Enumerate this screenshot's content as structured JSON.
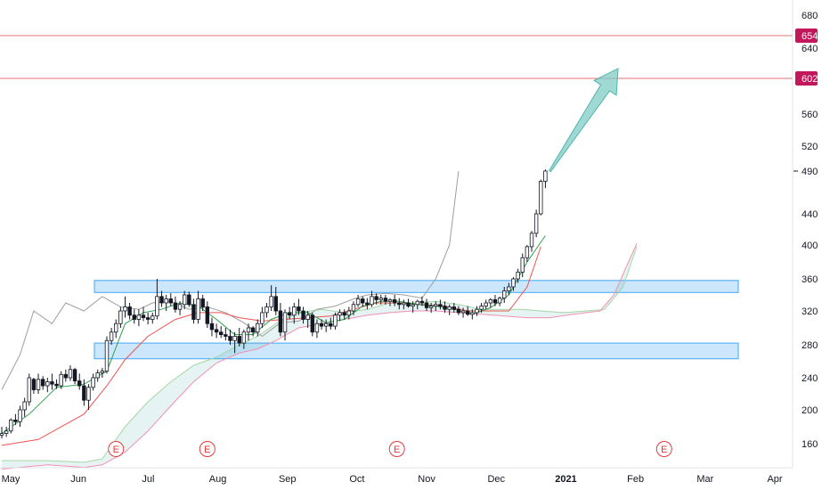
{
  "chart_data": {
    "type": "candlestick",
    "y_axis": {
      "ticks": [
        "680",
        "640",
        "560",
        "520",
        "440",
        "400",
        "360",
        "320",
        "280",
        "240",
        "200",
        "160"
      ],
      "tick_values": [
        680,
        640,
        560,
        520,
        440,
        400,
        360,
        320,
        280,
        240,
        200,
        160
      ],
      "ylim": [
        130,
        700
      ]
    },
    "x_axis": {
      "labels": [
        "May",
        "Jun",
        "Jul",
        "Aug",
        "Sep",
        "Oct",
        "Nov",
        "Dec",
        "2021",
        "Feb",
        "Mar",
        "Apr"
      ],
      "bold": [
        "2021"
      ],
      "x_range": [
        0,
        340
      ]
    },
    "price_tags": [
      {
        "label": "654",
        "value": 654,
        "color": "#c2185b"
      },
      {
        "label": "602",
        "value": 602,
        "color": "#c2185b"
      },
      {
        "label": "490",
        "value": 490,
        "color": "#131722"
      }
    ],
    "horizontal_lines": [
      654,
      602
    ],
    "zones": [
      {
        "from": 343,
        "to": 358
      },
      {
        "from": 263,
        "to": 282
      }
    ],
    "earnings_label": "E",
    "earnings_markers": [
      50,
      90,
      173,
      290
    ],
    "candles": [
      [
        0,
        170,
        180,
        166,
        172
      ],
      [
        2,
        172,
        180,
        168,
        175
      ],
      [
        4,
        175,
        190,
        172,
        188
      ],
      [
        6,
        188,
        195,
        182,
        186
      ],
      [
        8,
        186,
        205,
        180,
        200
      ],
      [
        10,
        200,
        215,
        192,
        210
      ],
      [
        12,
        210,
        245,
        205,
        240
      ],
      [
        14,
        238,
        240,
        220,
        225
      ],
      [
        16,
        225,
        245,
        220,
        238
      ],
      [
        18,
        238,
        242,
        225,
        230
      ],
      [
        20,
        230,
        240,
        222,
        235
      ],
      [
        22,
        235,
        245,
        225,
        232
      ],
      [
        24,
        232,
        238,
        226,
        230
      ],
      [
        26,
        230,
        248,
        226,
        244
      ],
      [
        28,
        244,
        250,
        235,
        240
      ],
      [
        30,
        240,
        255,
        236,
        250
      ],
      [
        32,
        250,
        252,
        232,
        236
      ],
      [
        34,
        236,
        245,
        225,
        230
      ],
      [
        36,
        230,
        238,
        205,
        212
      ],
      [
        38,
        212,
        232,
        200,
        228
      ],
      [
        40,
        228,
        245,
        224,
        240
      ],
      [
        42,
        240,
        250,
        235,
        246
      ],
      [
        44,
        246,
        252,
        240,
        248
      ],
      [
        46,
        248,
        290,
        245,
        285
      ],
      [
        48,
        285,
        300,
        280,
        295
      ],
      [
        50,
        295,
        310,
        288,
        305
      ],
      [
        52,
        305,
        325,
        300,
        320
      ],
      [
        54,
        320,
        338,
        312,
        325
      ],
      [
        56,
        325,
        330,
        310,
        315
      ],
      [
        58,
        315,
        322,
        305,
        310
      ],
      [
        60,
        310,
        322,
        302,
        315
      ],
      [
        62,
        315,
        325,
        308,
        312
      ],
      [
        64,
        312,
        318,
        304,
        310
      ],
      [
        66,
        310,
        318,
        305,
        314
      ],
      [
        68,
        314,
        360,
        310,
        338
      ],
      [
        70,
        338,
        345,
        325,
        330
      ],
      [
        72,
        330,
        340,
        320,
        335
      ],
      [
        74,
        335,
        342,
        326,
        330
      ],
      [
        76,
        330,
        338,
        318,
        322
      ],
      [
        78,
        322,
        332,
        315,
        328
      ],
      [
        80,
        328,
        345,
        322,
        340
      ],
      [
        82,
        340,
        344,
        325,
        328
      ],
      [
        84,
        328,
        335,
        305,
        310
      ],
      [
        86,
        310,
        345,
        305,
        335
      ],
      [
        88,
        335,
        340,
        320,
        325
      ],
      [
        90,
        325,
        332,
        300,
        305
      ],
      [
        92,
        305,
        312,
        290,
        298
      ],
      [
        94,
        298,
        305,
        288,
        295
      ],
      [
        96,
        295,
        302,
        288,
        292
      ],
      [
        98,
        292,
        300,
        285,
        290
      ],
      [
        100,
        290,
        298,
        280,
        285
      ],
      [
        102,
        285,
        295,
        270,
        290
      ],
      [
        104,
        290,
        300,
        278,
        282
      ],
      [
        106,
        282,
        298,
        275,
        295
      ],
      [
        108,
        295,
        305,
        285,
        300
      ],
      [
        110,
        300,
        302,
        290,
        295
      ],
      [
        112,
        295,
        310,
        290,
        305
      ],
      [
        114,
        305,
        325,
        300,
        318
      ],
      [
        116,
        318,
        330,
        312,
        325
      ],
      [
        118,
        325,
        352,
        320,
        338
      ],
      [
        120,
        338,
        350,
        315,
        320
      ],
      [
        122,
        320,
        330,
        290,
        295
      ],
      [
        124,
        295,
        322,
        285,
        318
      ],
      [
        126,
        318,
        325,
        310,
        315
      ],
      [
        128,
        315,
        330,
        305,
        325
      ],
      [
        130,
        325,
        335,
        315,
        320
      ],
      [
        132,
        320,
        325,
        305,
        310
      ],
      [
        134,
        310,
        320,
        300,
        315
      ],
      [
        136,
        315,
        318,
        290,
        295
      ],
      [
        138,
        295,
        310,
        288,
        305
      ],
      [
        140,
        305,
        310,
        298,
        302
      ],
      [
        142,
        302,
        310,
        295,
        305
      ],
      [
        144,
        305,
        312,
        298,
        302
      ],
      [
        146,
        302,
        318,
        298,
        315
      ],
      [
        148,
        315,
        322,
        308,
        318
      ],
      [
        150,
        318,
        322,
        310,
        315
      ],
      [
        152,
        315,
        325,
        310,
        320
      ],
      [
        154,
        320,
        332,
        315,
        328
      ],
      [
        156,
        328,
        340,
        325,
        335
      ],
      [
        158,
        335,
        338,
        325,
        330
      ],
      [
        160,
        330,
        336,
        322,
        328
      ],
      [
        162,
        328,
        345,
        325,
        338
      ],
      [
        164,
        338,
        342,
        328,
        334
      ],
      [
        166,
        334,
        340,
        328,
        336
      ],
      [
        168,
        336,
        340,
        328,
        332
      ],
      [
        170,
        332,
        336,
        326,
        334
      ],
      [
        172,
        334,
        340,
        326,
        330
      ],
      [
        174,
        330,
        336,
        322,
        328
      ],
      [
        176,
        328,
        334,
        322,
        330
      ],
      [
        178,
        330,
        335,
        324,
        326
      ],
      [
        180,
        326,
        332,
        318,
        328
      ],
      [
        182,
        328,
        334,
        322,
        332
      ],
      [
        184,
        332,
        338,
        326,
        330
      ],
      [
        186,
        330,
        335,
        320,
        324
      ],
      [
        188,
        324,
        330,
        318,
        326
      ],
      [
        190,
        326,
        332,
        320,
        328
      ],
      [
        192,
        328,
        334,
        322,
        326
      ],
      [
        194,
        326,
        332,
        318,
        322
      ],
      [
        196,
        322,
        328,
        315,
        325
      ],
      [
        198,
        325,
        330,
        318,
        322
      ],
      [
        200,
        322,
        326,
        315,
        318
      ],
      [
        202,
        318,
        324,
        312,
        320
      ],
      [
        204,
        320,
        326,
        314,
        316
      ],
      [
        206,
        316,
        322,
        310,
        318
      ],
      [
        208,
        318,
        326,
        314,
        322
      ],
      [
        210,
        322,
        330,
        318,
        326
      ],
      [
        212,
        326,
        334,
        322,
        330
      ],
      [
        214,
        330,
        336,
        324,
        334
      ],
      [
        216,
        334,
        340,
        326,
        330
      ],
      [
        218,
        330,
        338,
        326,
        336
      ],
      [
        220,
        336,
        350,
        330,
        345
      ],
      [
        222,
        345,
        355,
        340,
        350
      ],
      [
        224,
        350,
        362,
        345,
        360
      ],
      [
        226,
        360,
        372,
        355,
        368
      ],
      [
        228,
        368,
        390,
        362,
        385
      ],
      [
        230,
        385,
        400,
        380,
        398
      ],
      [
        232,
        398,
        418,
        392,
        415
      ],
      [
        234,
        415,
        445,
        410,
        440
      ],
      [
        236,
        440,
        480,
        438,
        478
      ],
      [
        238,
        478,
        492,
        470,
        490
      ]
    ],
    "tenkan": [
      [
        0,
        172
      ],
      [
        12,
        195
      ],
      [
        24,
        228
      ],
      [
        36,
        232
      ],
      [
        46,
        248
      ],
      [
        54,
        305
      ],
      [
        62,
        318
      ],
      [
        70,
        322
      ],
      [
        78,
        330
      ],
      [
        86,
        326
      ],
      [
        94,
        310
      ],
      [
        102,
        292
      ],
      [
        110,
        292
      ],
      [
        118,
        310
      ],
      [
        126,
        318
      ],
      [
        134,
        318
      ],
      [
        142,
        306
      ],
      [
        150,
        310
      ],
      [
        158,
        326
      ],
      [
        166,
        332
      ],
      [
        174,
        332
      ],
      [
        182,
        328
      ],
      [
        190,
        326
      ],
      [
        198,
        322
      ],
      [
        206,
        316
      ],
      [
        214,
        324
      ],
      [
        222,
        340
      ],
      [
        230,
        380
      ],
      [
        238,
        412
      ]
    ],
    "kijun": [
      [
        0,
        158
      ],
      [
        16,
        165
      ],
      [
        36,
        195
      ],
      [
        46,
        230
      ],
      [
        54,
        262
      ],
      [
        64,
        290
      ],
      [
        76,
        310
      ],
      [
        86,
        318
      ],
      [
        96,
        318
      ],
      [
        104,
        312
      ],
      [
        114,
        308
      ],
      [
        124,
        310
      ],
      [
        134,
        312
      ],
      [
        144,
        314
      ],
      [
        154,
        322
      ],
      [
        164,
        330
      ],
      [
        174,
        330
      ],
      [
        184,
        328
      ],
      [
        194,
        326
      ],
      [
        204,
        320
      ],
      [
        214,
        320
      ],
      [
        222,
        320
      ],
      [
        230,
        350
      ],
      [
        236,
        398
      ]
    ],
    "chikou": [
      [
        0,
        225
      ],
      [
        8,
        268
      ],
      [
        14,
        320
      ],
      [
        22,
        305
      ],
      [
        28,
        330
      ],
      [
        36,
        320
      ],
      [
        44,
        338
      ],
      [
        52,
        325
      ],
      [
        60,
        322
      ],
      [
        66,
        330
      ],
      [
        74,
        332
      ],
      [
        82,
        322
      ],
      [
        90,
        325
      ],
      [
        98,
        318
      ],
      [
        106,
        306
      ],
      [
        114,
        290
      ],
      [
        122,
        306
      ],
      [
        130,
        308
      ],
      [
        138,
        322
      ],
      [
        146,
        326
      ],
      [
        154,
        335
      ],
      [
        160,
        340
      ],
      [
        168,
        342
      ],
      [
        176,
        340
      ],
      [
        184,
        336
      ],
      [
        190,
        360
      ],
      [
        196,
        400
      ],
      [
        200,
        490
      ]
    ],
    "senkou_a": [
      [
        0,
        140
      ],
      [
        20,
        140
      ],
      [
        36,
        138
      ],
      [
        44,
        142
      ],
      [
        54,
        180
      ],
      [
        64,
        210
      ],
      [
        74,
        235
      ],
      [
        84,
        255
      ],
      [
        94,
        265
      ],
      [
        104,
        280
      ],
      [
        112,
        290
      ],
      [
        120,
        305
      ],
      [
        130,
        318
      ],
      [
        140,
        322
      ],
      [
        150,
        318
      ],
      [
        160,
        322
      ],
      [
        170,
        330
      ],
      [
        180,
        330
      ],
      [
        190,
        332
      ],
      [
        200,
        328
      ],
      [
        210,
        322
      ],
      [
        220,
        322
      ],
      [
        228,
        322
      ],
      [
        236,
        320
      ],
      [
        246,
        318
      ],
      [
        256,
        320
      ],
      [
        264,
        322
      ],
      [
        272,
        350
      ],
      [
        278,
        398
      ]
    ],
    "senkou_b": [
      [
        0,
        130
      ],
      [
        20,
        135
      ],
      [
        36,
        132
      ],
      [
        44,
        135
      ],
      [
        54,
        150
      ],
      [
        64,
        175
      ],
      [
        74,
        205
      ],
      [
        84,
        235
      ],
      [
        94,
        258
      ],
      [
        104,
        270
      ],
      [
        112,
        275
      ],
      [
        120,
        285
      ],
      [
        130,
        300
      ],
      [
        140,
        305
      ],
      [
        150,
        310
      ],
      [
        160,
        315
      ],
      [
        170,
        318
      ],
      [
        180,
        320
      ],
      [
        190,
        320
      ],
      [
        200,
        318
      ],
      [
        210,
        316
      ],
      [
        220,
        314
      ],
      [
        230,
        312
      ],
      [
        240,
        312
      ],
      [
        250,
        316
      ],
      [
        262,
        320
      ],
      [
        268,
        340
      ],
      [
        278,
        402
      ]
    ],
    "forecast_arrow": {
      "from": [
        240,
        490
      ],
      "to": [
        262,
        620
      ]
    },
    "colors": {
      "up": "#ffffff",
      "down": "#131722",
      "wick": "#131722",
      "tenkan": "#2e9e4a",
      "kijun": "#ef5350",
      "chikou": "#9e9e9e",
      "senkou_a": "#a5d6a7",
      "senkou_b": "#f48fb1",
      "cloud": "#26a69a",
      "zone_fill": "#bbdefb",
      "zone_border": "#42a5f5",
      "hline": "#e57373",
      "arrow": "#80cbc4",
      "earnings": "#e53935"
    }
  }
}
